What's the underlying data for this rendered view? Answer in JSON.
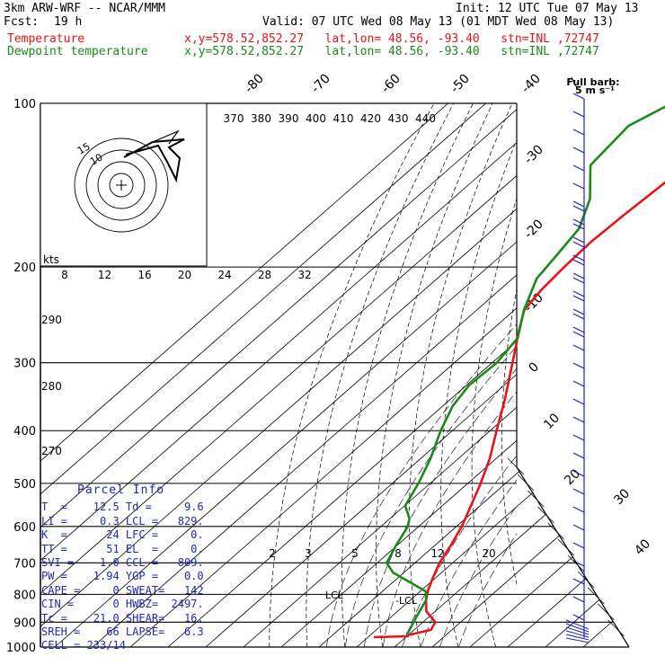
{
  "header": {
    "model": "3km ARW-WRF -- NCAR/MMM",
    "init": "Init: 12 UTC Tue 07 May 13",
    "fcst_label": "Fcst:",
    "fcst_value": "19 h",
    "valid": "Valid: 07 UTC Wed 08 May 13 (01 MDT Wed 08 May 13)",
    "temp_label": "Temperature",
    "temp_loc": "x,y=578.52,852.27   lat,lon= 48.56, -93.40   stn=INL ,72747",
    "dew_label": "Dewpoint temperature",
    "dew_loc": "x,y=578.52,852.27   lat,lon= 48.56, -93.40   stn=INL ,72747",
    "full_barb": "Full barb:",
    "barb_units": "5 m s⁻¹"
  },
  "colors": {
    "temperature": "#e8141b",
    "dewpoint": "#1a8a1a",
    "barbs": "#2020c0",
    "parcel_text": "#1f2bb0",
    "isotherm": "#000000",
    "grid": "#000000"
  },
  "chart_data": {
    "type": "skew-t",
    "y_axis": "pressure (hPa)",
    "y_scale": "log",
    "pressure_ticks": [
      100,
      200,
      300,
      400,
      500,
      600,
      700,
      800,
      900,
      1000
    ],
    "isotherm_labels": [
      "-80",
      "-70",
      "-60",
      "-50",
      "-40",
      "-30",
      "-20",
      "-10",
      "0",
      "10",
      "20",
      "30",
      "40"
    ],
    "theta_labels": [
      "370",
      "380",
      "390",
      "400",
      "410",
      "420",
      "430",
      "440"
    ],
    "mixing_ratio_labels": [
      "2",
      "3",
      "5",
      "8",
      "12",
      "20"
    ],
    "hodograph": {
      "unit_label": "kts",
      "ring_labels": [
        "15",
        "10"
      ],
      "speed_ticks": [
        "8",
        "12",
        "16",
        "20",
        "24",
        "28",
        "32"
      ]
    },
    "theta_e_labels": [
      "290",
      "280",
      "270"
    ],
    "level_labels": [
      "LCL",
      "LCL"
    ],
    "series": [
      {
        "name": "Temperature",
        "points": [
          {
            "p": 950,
            "t": 10.2
          },
          {
            "p": 930,
            "t": 14.5
          },
          {
            "p": 900,
            "t": 13.3
          },
          {
            "p": 860,
            "t": 7.7
          },
          {
            "p": 820,
            "t": 4.2
          },
          {
            "p": 790,
            "t": 2.0
          },
          {
            "p": 750,
            "t": -0.5
          },
          {
            "p": 700,
            "t": -3.5
          },
          {
            "p": 650,
            "t": -5.8
          },
          {
            "p": 600,
            "t": -8.6
          },
          {
            "p": 550,
            "t": -12.4
          },
          {
            "p": 500,
            "t": -16.6
          },
          {
            "p": 450,
            "t": -21.7
          },
          {
            "p": 400,
            "t": -28.3
          },
          {
            "p": 350,
            "t": -35.6
          },
          {
            "p": 300,
            "t": -44.6
          },
          {
            "p": 260,
            "t": -53.0
          },
          {
            "p": 240,
            "t": -57.4
          },
          {
            "p": 220,
            "t": -59.0
          },
          {
            "p": 200,
            "t": -59.8
          },
          {
            "p": 180,
            "t": -60.3
          },
          {
            "p": 160,
            "t": -59.7
          },
          {
            "p": 140,
            "t": -58.6
          },
          {
            "p": 120,
            "t": -60.1
          },
          {
            "p": 100,
            "t": -62.9
          }
        ]
      },
      {
        "name": "Dewpoint temperature",
        "points": [
          {
            "p": 950,
            "t": 9.6
          },
          {
            "p": 880,
            "t": 6.7
          },
          {
            "p": 820,
            "t": 4.2
          },
          {
            "p": 790,
            "t": 1.5
          },
          {
            "p": 760,
            "t": -5.5
          },
          {
            "p": 730,
            "t": -12.8
          },
          {
            "p": 700,
            "t": -17.5
          },
          {
            "p": 650,
            "t": -20.3
          },
          {
            "p": 600,
            "t": -22.9
          },
          {
            "p": 580,
            "t": -24.9
          },
          {
            "p": 550,
            "t": -29.8
          },
          {
            "p": 500,
            "t": -33.1
          },
          {
            "p": 450,
            "t": -37.4
          },
          {
            "p": 400,
            "t": -43.1
          },
          {
            "p": 360,
            "t": -47.4
          },
          {
            "p": 330,
            "t": -49.3
          },
          {
            "p": 300,
            "t": -48.8
          },
          {
            "p": 270,
            "t": -50.7
          },
          {
            "p": 240,
            "t": -57.5
          },
          {
            "p": 210,
            "t": -63.6
          },
          {
            "p": 190,
            "t": -65.4
          },
          {
            "p": 170,
            "t": -67.5
          },
          {
            "p": 150,
            "t": -73.5
          },
          {
            "p": 130,
            "t": -83.6
          },
          {
            "p": 110,
            "t": -85.4
          },
          {
            "p": 100,
            "t": -80.8
          }
        ]
      }
    ]
  },
  "parcel_info": {
    "title": "Parcel Info",
    "rows": [
      [
        "T  =",
        "12.5",
        "Td =",
        "9.6"
      ],
      [
        "LI =",
        "0.3",
        "LCL =",
        "829."
      ],
      [
        "K  =",
        "24",
        "LFC =",
        "0."
      ],
      [
        "TT =",
        "51",
        "EL  =",
        "0."
      ],
      [
        "SVI =",
        "1.0",
        "CCL =",
        "809."
      ],
      [
        "PW =",
        "1.94",
        "YGP =",
        "0.0"
      ],
      [
        "CAPE =",
        "0",
        "SWEAT=",
        "142"
      ],
      [
        "CIN =",
        "0",
        "HWBZ=",
        "2497."
      ],
      [
        "Tc =",
        "21.0",
        "SHEAR=",
        "16."
      ],
      [
        "SREH =",
        "66",
        "LAPSE=",
        "6.3"
      ],
      [
        "CELL =",
        "233/14",
        "",
        ""
      ]
    ]
  }
}
